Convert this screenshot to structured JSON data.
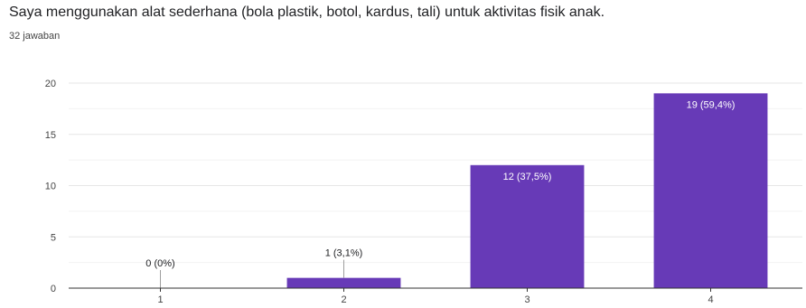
{
  "question": {
    "title": "Saya menggunakan alat sederhana (bola plastik, botol, kardus, tali) untuk aktivitas fisik anak.",
    "response_count": "32 jawaban"
  },
  "colors": {
    "bar": "#673ab7",
    "grid": "#e6e6e6",
    "axis": "#333333"
  },
  "chart_data": {
    "type": "bar",
    "categories": [
      "1",
      "2",
      "3",
      "4"
    ],
    "values": [
      0,
      1,
      12,
      19
    ],
    "data_labels": [
      "0 (0%)",
      "1 (3,1%)",
      "12 (37,5%)",
      "19 (59,4%)"
    ],
    "yticks": [
      0,
      5,
      10,
      15,
      20
    ],
    "ylim": [
      0,
      20
    ],
    "grid": true,
    "legend": "none"
  }
}
